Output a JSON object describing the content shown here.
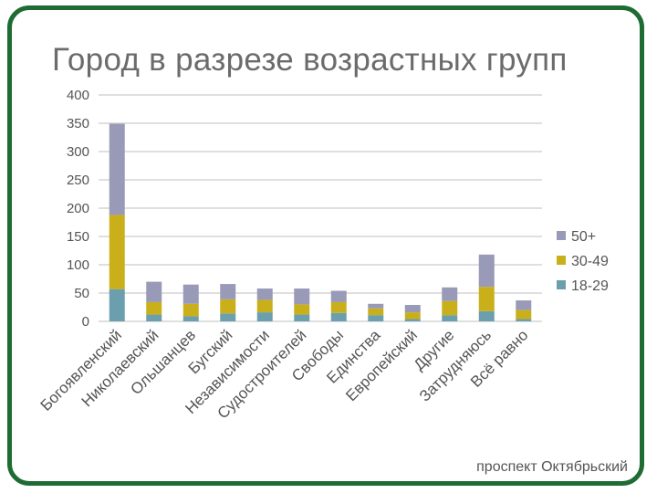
{
  "footer": "проспект Октябрьский",
  "colors": {
    "frame": "#1f6b34",
    "grid": "#bfbfbf",
    "axis_text": "#555555"
  },
  "chart_data": {
    "type": "bar",
    "stacked": true,
    "title": "Город в разрезе возрастных групп",
    "xlabel": "",
    "ylabel": "",
    "ylim": [
      0,
      400
    ],
    "yticks": [
      0,
      50,
      100,
      150,
      200,
      250,
      300,
      350,
      400
    ],
    "grid": true,
    "legend_position": "right",
    "categories": [
      "Богоявленский",
      "Николаевский",
      "Ольшанцев",
      "Бугский",
      "Независимости",
      "Судостроителей",
      "Свободы",
      "Единства",
      "Европейский",
      "Другие",
      "Затрудняюсь",
      "Всё равно"
    ],
    "series": [
      {
        "name": "18-29",
        "color": "#6c9fae",
        "values": [
          57,
          12,
          9,
          14,
          16,
          12,
          15,
          11,
          4,
          11,
          18,
          4
        ]
      },
      {
        "name": "30-49",
        "color": "#c9b01a",
        "values": [
          131,
          22,
          22,
          25,
          22,
          18,
          19,
          12,
          12,
          25,
          43,
          16
        ]
      },
      {
        "name": "50+",
        "color": "#9999b8",
        "values": [
          161,
          36,
          34,
          27,
          20,
          28,
          20,
          8,
          13,
          24,
          57,
          17
        ]
      }
    ],
    "legend_order": [
      "50+",
      "30-49",
      "18-29"
    ]
  }
}
